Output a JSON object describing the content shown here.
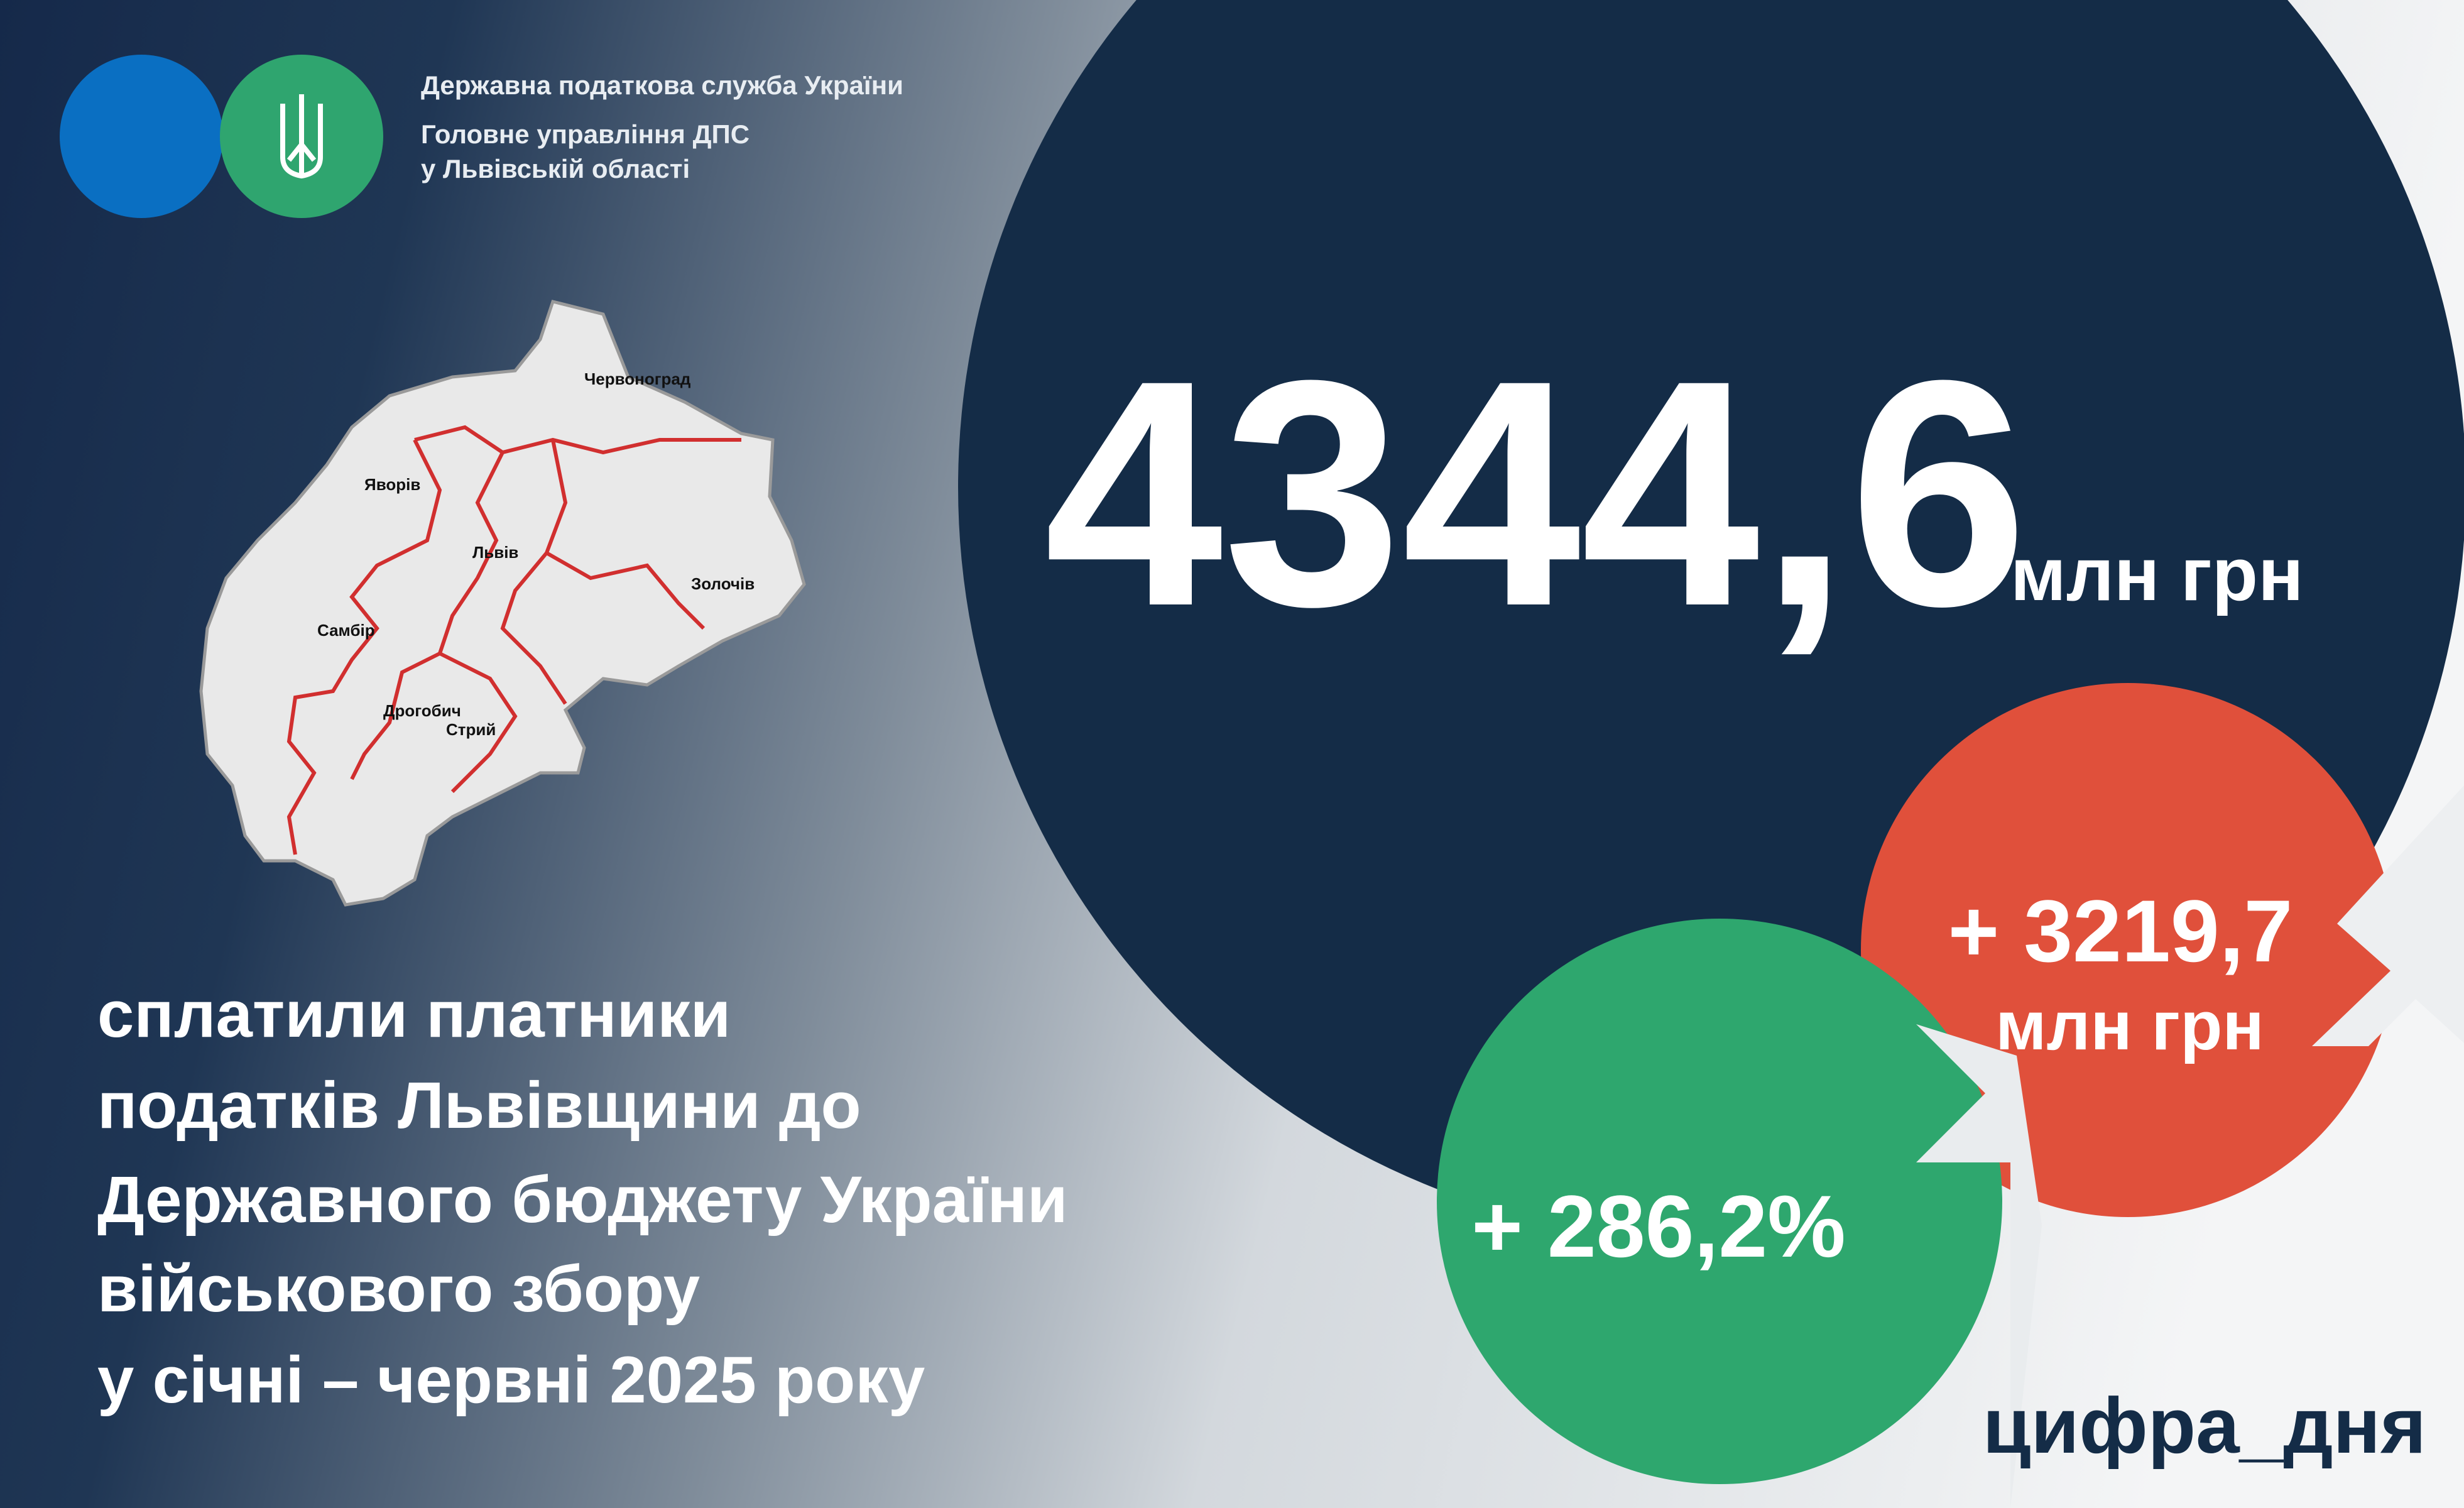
{
  "header": {
    "org_lines": [
      "Державна податкова служба України",
      "Головне управління ДПС",
      "у Львівській області"
    ]
  },
  "map": {
    "cities": [
      "Червоноград",
      "Яворів",
      "Львів",
      "Золочів",
      "Самбір",
      "Дрогобич",
      "Стрий"
    ]
  },
  "main": {
    "value": "4344,6",
    "unit": "млн грн"
  },
  "increase_abs": {
    "value": "+ 3219,7",
    "unit": "млн грн"
  },
  "increase_pct": {
    "value": "+ 286,2%"
  },
  "description": [
    "сплатили платники",
    "податків Львівщини до",
    "Державного бюджету України",
    "військового збору",
    "у січні – червні 2025 року"
  ],
  "hashtag": "цифра_дня"
}
